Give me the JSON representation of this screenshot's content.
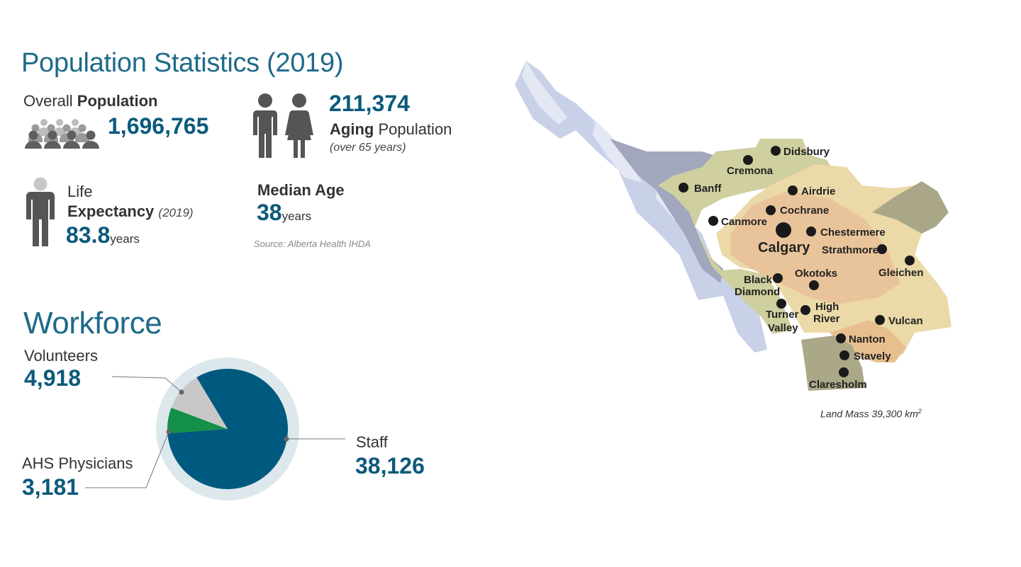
{
  "population": {
    "title": "Population Statistics (2019)",
    "overall": {
      "label_prefix": "Overall ",
      "label_bold": "Population",
      "value": "1,696,765"
    },
    "aging": {
      "value": "211,374",
      "label_bold": "Aging",
      "label_rest": " Population",
      "note": "(over 65 years)"
    },
    "life_expectancy": {
      "label_line1": "Life",
      "label_bold": "Expectancy",
      "year": "(2019)",
      "value": "83.8",
      "unit": "years"
    },
    "median_age": {
      "label": "Median Age",
      "value": "38",
      "unit": "years"
    },
    "source": "Source: Alberta Health IHDA"
  },
  "workforce": {
    "title": "Workforce",
    "volunteers": {
      "label": "Volunteers",
      "value": "4,918"
    },
    "physicians": {
      "label": "AHS Physicians",
      "value": "3,181"
    },
    "staff": {
      "label": "Staff",
      "value": "38,126"
    },
    "colors": {
      "staff": "#005a7f",
      "physicians": "#149048",
      "volunteers": "#c8c8c8",
      "ring": "#dde8ec"
    }
  },
  "chart_data": {
    "type": "pie",
    "categories": [
      "Staff",
      "AHS Physicians",
      "Volunteers"
    ],
    "values": [
      38126,
      3181,
      4918
    ]
  },
  "map": {
    "cities": [
      "Didsbury",
      "Cremona",
      "Airdrie",
      "Banff",
      "Cochrane",
      "Canmore",
      "Chestermere",
      "Calgary",
      "Strathmore",
      "Gleichen",
      "Okotoks",
      "Black",
      "Diamond",
      "High",
      "River",
      "Turner",
      "Valley",
      "Vulcan",
      "Nanton",
      "Stavely",
      "Claresholm"
    ],
    "land_mass_label": "Land Mass 39,300 km",
    "land_mass_sup": "2"
  },
  "icons": [
    "crowd-icon",
    "couple-icon",
    "person-icon",
    "region-map"
  ]
}
